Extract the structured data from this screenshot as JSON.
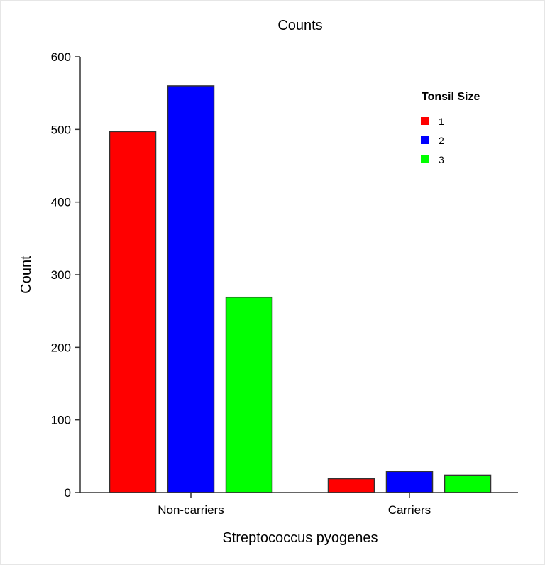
{
  "chart_data": {
    "type": "bar",
    "title": "Counts",
    "xlabel": "Streptococcus pyogenes",
    "ylabel": "Count",
    "categories": [
      "Non-carriers",
      "Carriers"
    ],
    "series": [
      {
        "name": "1",
        "color": "#ff0000",
        "values": [
          497,
          19
        ]
      },
      {
        "name": "2",
        "color": "#0000ff",
        "values": [
          560,
          29
        ]
      },
      {
        "name": "3",
        "color": "#00ff00",
        "values": [
          269,
          24
        ]
      }
    ],
    "ylim": [
      0,
      600
    ],
    "yticks": [
      0,
      100,
      200,
      300,
      400,
      500,
      600
    ],
    "legend": {
      "title": "Tonsil Size",
      "placement": "top-right"
    },
    "grid": false
  }
}
